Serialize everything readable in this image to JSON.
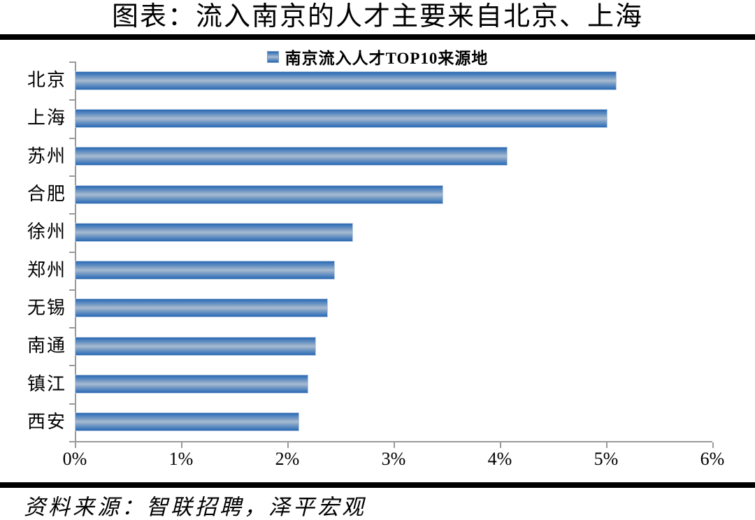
{
  "page": {
    "title": "图表：流入南京的人才主要来自北京、上海",
    "source_note": "资料来源：智联招聘，泽平宏观"
  },
  "chart_data": {
    "type": "bar",
    "orientation": "horizontal",
    "legend": "南京流入人才TOP10来源地",
    "legend_position": "top",
    "categories": [
      "北京",
      "上海",
      "苏州",
      "合肥",
      "徐州",
      "郑州",
      "无锡",
      "南通",
      "镇江",
      "西安"
    ],
    "values": [
      5.1,
      5.01,
      4.07,
      3.47,
      2.62,
      2.45,
      2.38,
      2.27,
      2.2,
      2.11
    ],
    "unit": "%",
    "xlabel": "",
    "ylabel": "",
    "xlim": [
      0,
      6
    ],
    "x_ticks": [
      "0%",
      "1%",
      "2%",
      "3%",
      "4%",
      "5%",
      "6%"
    ],
    "grid": false,
    "colors": {
      "bar_dark": "#2a67b0",
      "bar_light": "#a9bcd2",
      "bar_border": "#b7cbe2",
      "axis": "#9a9a9a",
      "rule": "#000000",
      "text": "#000000"
    }
  }
}
